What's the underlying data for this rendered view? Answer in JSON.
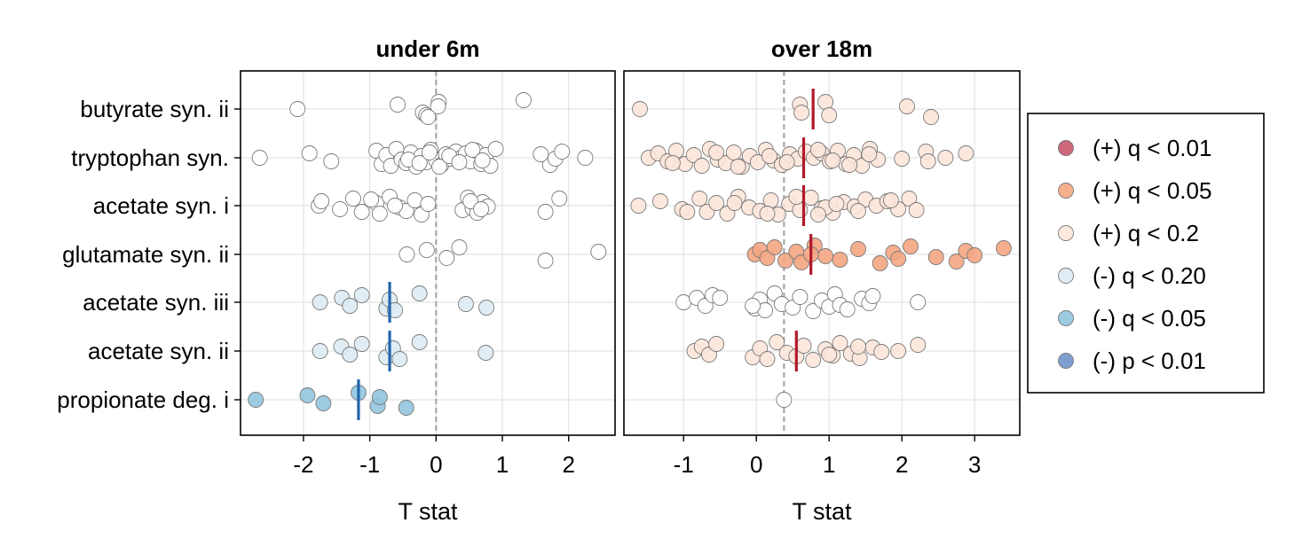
{
  "chart_data": {
    "type": "scatter",
    "categories": [
      "butyrate syn. ii",
      "tryptophan syn.",
      "acetate syn. i",
      "glutamate syn. ii",
      "acetate syn. iii",
      "acetate syn. ii",
      "propionate deg. i"
    ],
    "xlabel": "T stat",
    "ylabel": "",
    "grid": true,
    "legend_position": "right",
    "legend": [
      {
        "label": "(+) q < 0.01",
        "color": "#c7586b"
      },
      {
        "label": "(+) q < 0.05",
        "color": "#f4a582"
      },
      {
        "label": "(+) q < 0.2",
        "color": "#fde6da"
      },
      {
        "label": "(-) q < 0.20",
        "color": "#ddebf4"
      },
      {
        "label": "(-) q < 0.05",
        "color": "#92c5de"
      },
      {
        "label": "(-) p < 0.01",
        "color": "#6f96c9"
      }
    ],
    "panels": [
      {
        "title": "under 6m",
        "xlim": [
          -2.95,
          2.7
        ],
        "xticks": [
          -2,
          -1,
          0,
          1,
          2
        ],
        "reference_line": 0,
        "groups": [
          {
            "category": "butyrate syn. ii",
            "color": "#ffffff",
            "median": null,
            "points": [
              -2.09,
              -0.58,
              -0.2,
              0.04,
              -0.15,
              0.03,
              -0.12,
              1.32
            ]
          },
          {
            "category": "tryptophan syn.",
            "color": "#ffffff",
            "median": null,
            "points": [
              -2.66,
              -1.91,
              -1.58,
              -0.9,
              -0.82,
              -0.75,
              -0.68,
              -0.6,
              -0.52,
              -0.45,
              -0.38,
              -0.3,
              -0.22,
              -0.15,
              -0.08,
              0.0,
              0.08,
              0.15,
              0.22,
              0.3,
              0.38,
              0.45,
              0.52,
              0.6,
              0.68,
              0.75,
              0.82,
              0.9,
              -0.42,
              -0.25,
              -0.1,
              0.05,
              0.2,
              0.35,
              0.55,
              0.7,
              1.72,
              1.58,
              1.8,
              1.9,
              2.25
            ]
          },
          {
            "category": "acetate syn. i",
            "color": "#ffffff",
            "median": null,
            "points": [
              -1.77,
              -1.73,
              -1.45,
              -1.25,
              -1.12,
              -0.9,
              -0.85,
              -0.7,
              -0.55,
              -0.45,
              -0.32,
              -0.22,
              -0.12,
              0.4,
              0.48,
              0.55,
              0.62,
              0.7,
              0.78,
              -0.98,
              -0.62,
              0.52,
              0.68,
              1.86,
              1.65
            ]
          },
          {
            "category": "glutamate syn. ii",
            "color": "#ffffff",
            "median": null,
            "points": [
              -0.44,
              -0.14,
              0.16,
              0.35,
              1.65,
              2.45
            ]
          },
          {
            "category": "acetate syn. iii",
            "color": "#ddebf4",
            "median": -0.7,
            "points": [
              -1.75,
              -1.42,
              -1.3,
              -1.12,
              -0.75,
              -0.7,
              -0.62,
              -0.25,
              0.45,
              0.76
            ]
          },
          {
            "category": "acetate syn. ii",
            "color": "#ddebf4",
            "median": -0.7,
            "points": [
              -1.75,
              -1.43,
              -1.3,
              -1.12,
              -0.75,
              -0.65,
              -0.55,
              -0.25,
              0.75
            ]
          },
          {
            "category": "propionate deg. i",
            "color": "#92c5de",
            "median": -1.17,
            "points": [
              -2.72,
              -1.94,
              -1.7,
              -1.17,
              -0.88,
              -0.85,
              -0.45
            ]
          }
        ]
      },
      {
        "title": "over 18m",
        "xlim": [
          -1.82,
          3.62
        ],
        "xticks": [
          -1,
          0,
          1,
          2,
          3
        ],
        "reference_line": 0.38,
        "groups": [
          {
            "category": "butyrate syn. ii",
            "color": "#fde6da",
            "median": 0.78,
            "points": [
              -1.6,
              0.6,
              0.62,
              0.95,
              1.0,
              2.07,
              2.4
            ]
          },
          {
            "category": "tryptophan syn.",
            "color": "#fde6da",
            "median": 0.65,
            "points": [
              -1.48,
              -1.35,
              -1.22,
              -1.1,
              -0.98,
              -0.86,
              -0.75,
              -0.64,
              -0.53,
              -0.42,
              -0.31,
              -0.2,
              -0.09,
              0.02,
              0.13,
              0.24,
              0.35,
              0.46,
              0.57,
              0.68,
              0.79,
              0.9,
              1.01,
              1.12,
              1.23,
              1.34,
              1.45,
              1.56,
              1.67,
              -1.15,
              -0.55,
              -0.25,
              0.18,
              0.42,
              0.85,
              1.05,
              1.28,
              1.55,
              2.0,
              2.33,
              2.6,
              2.88,
              2.36
            ]
          },
          {
            "category": "acetate syn. i",
            "color": "#fde6da",
            "median": 0.65,
            "points": [
              -1.62,
              -1.32,
              -1.02,
              -0.78,
              -0.68,
              -0.55,
              -0.4,
              -0.25,
              -0.1,
              0.05,
              0.2,
              0.3,
              0.45,
              0.6,
              0.75,
              0.9,
              1.05,
              1.2,
              1.35,
              1.5,
              1.65,
              1.8,
              1.95,
              2.1,
              -0.95,
              -0.3,
              0.15,
              0.55,
              0.95,
              1.4,
              1.85,
              0.85,
              1.1,
              2.2
            ]
          },
          {
            "category": "glutamate syn. ii",
            "color": "#f4a582",
            "median": 0.75,
            "points": [
              -0.02,
              0.05,
              0.15,
              0.25,
              0.4,
              0.55,
              0.62,
              0.8,
              0.95,
              1.15,
              1.4,
              1.7,
              1.88,
              1.95,
              2.12,
              2.47,
              2.75,
              2.88,
              3.0,
              3.4,
              0.75
            ]
          },
          {
            "category": "acetate syn. iii",
            "color": "#ffffff",
            "median": null,
            "points": [
              -1.0,
              -0.82,
              -0.7,
              -0.6,
              -0.02,
              0.05,
              0.12,
              0.25,
              0.35,
              0.5,
              0.6,
              0.78,
              0.9,
              1.0,
              1.08,
              1.15,
              1.25,
              1.45,
              1.55,
              1.6,
              2.22,
              -0.5,
              -0.05
            ]
          },
          {
            "category": "acetate syn. ii",
            "color": "#fde6da",
            "median": 0.55,
            "points": [
              -0.85,
              -0.75,
              -0.65,
              -0.55,
              -0.05,
              0.05,
              0.15,
              0.28,
              0.42,
              0.55,
              0.65,
              0.78,
              0.95,
              1.05,
              1.15,
              1.3,
              1.42,
              1.6,
              1.72,
              2.22,
              1.95,
              1.4,
              1.0
            ]
          },
          {
            "category": "propionate deg. i",
            "color": "#ffffff",
            "median": null,
            "points": [
              0.38
            ]
          }
        ]
      }
    ]
  }
}
